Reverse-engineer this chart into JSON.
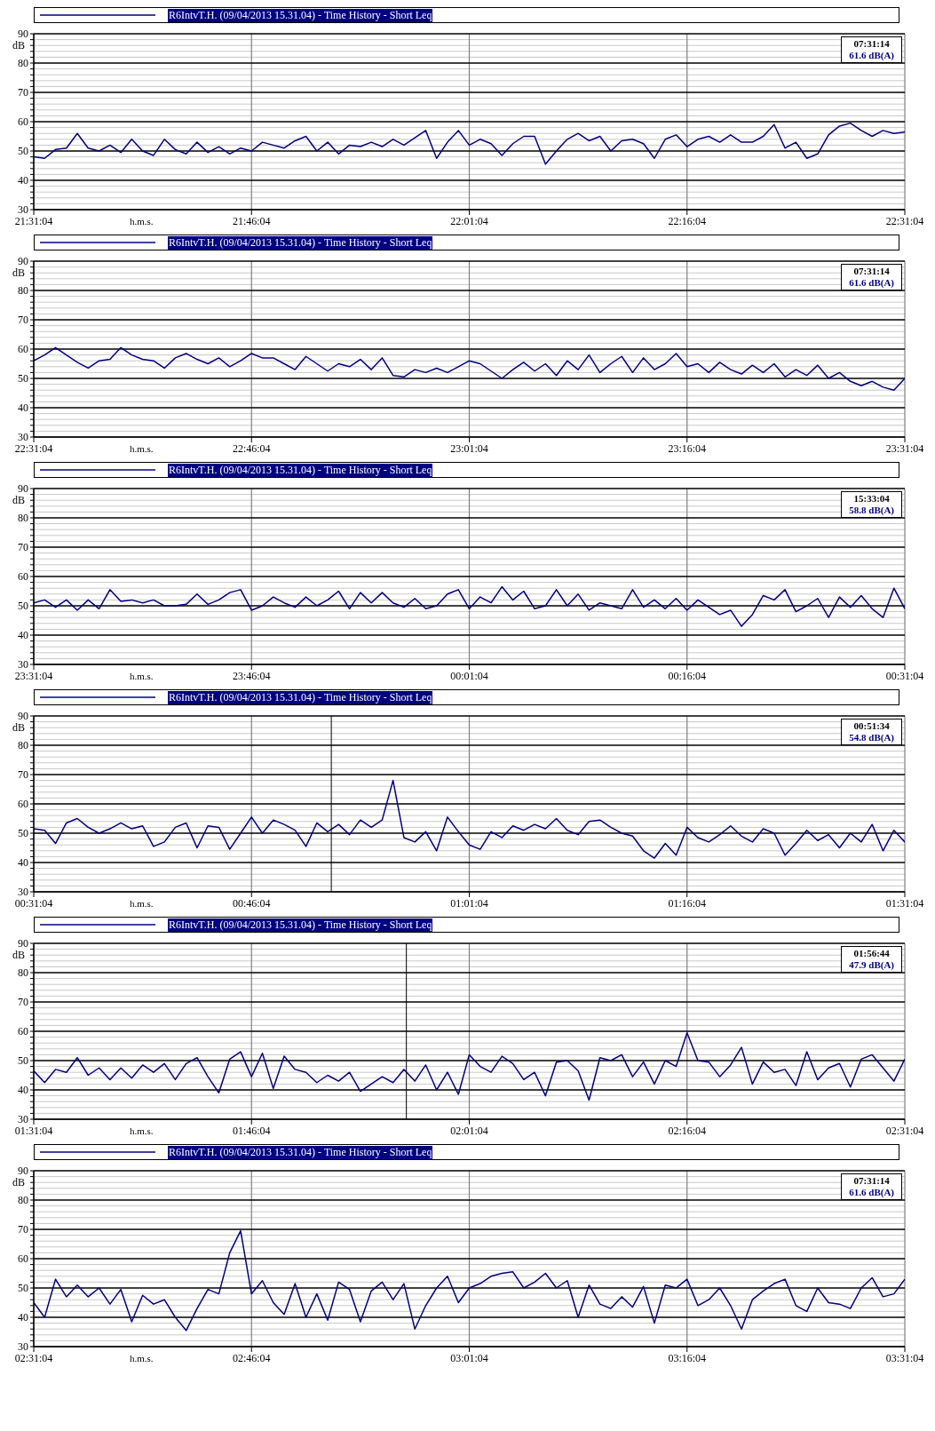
{
  "chart_data": [
    {
      "type": "line",
      "xlabel": "h.m.s.",
      "ylabel": "dB",
      "xlim": [
        21.5178,
        22.5178
      ],
      "xticks": [
        {
          "value": 21.5178,
          "label": "21:31:04"
        },
        {
          "value": 21.7678,
          "label": "21:46:04"
        },
        {
          "value": 22.0178,
          "label": "22:01:04"
        },
        {
          "value": 22.2678,
          "label": "22:16:04"
        },
        {
          "value": 22.5178,
          "label": "22:31:04"
        }
      ],
      "ylim": [
        30,
        90
      ],
      "yticks": [
        30,
        {
          "value": 32,
          "label": null
        },
        {
          "value": 34,
          "label": null
        },
        {
          "value": 36,
          "label": null
        },
        {
          "value": 38,
          "label": null
        },
        40,
        {
          "value": 42,
          "label": null
        },
        {
          "value": 44,
          "label": null
        },
        {
          "value": 46,
          "label": null
        },
        {
          "value": 48,
          "label": null
        },
        50,
        {
          "value": 52,
          "label": null
        },
        {
          "value": 54,
          "label": null
        },
        {
          "value": 56,
          "label": null
        },
        {
          "value": 58,
          "label": null
        },
        60,
        {
          "value": 62,
          "label": null
        },
        {
          "value": 64,
          "label": null
        },
        {
          "value": 66,
          "label": null
        },
        {
          "value": 68,
          "label": null
        },
        70,
        {
          "value": 72,
          "label": null
        },
        {
          "value": 74,
          "label": null
        },
        {
          "value": 76,
          "label": null
        },
        {
          "value": 78,
          "label": null
        },
        80,
        {
          "value": 82,
          "label": null
        },
        {
          "value": 84,
          "label": null
        },
        {
          "value": 86,
          "label": null
        },
        {
          "value": 88,
          "label": null
        },
        90
      ],
      "grid": true,
      "legend": "top",
      "annotations": [
        "07:31:14",
        "61.6 dB(A)"
      ],
      "series": [
        {
          "name": "R6IntvT.H. (09/04/2013 15.31.04) - Time History - Short Leq",
          "color": "#000080",
          "x": [
            21.5178,
            21.5303,
            21.5428,
            21.5553,
            21.5678,
            21.5803,
            21.5928,
            21.6053,
            21.6178,
            21.6303,
            21.6428,
            21.6553,
            21.6678,
            21.6803,
            21.6928,
            21.7053,
            21.7178,
            21.7303,
            21.7428,
            21.7553,
            21.7678,
            21.7803,
            21.7928,
            21.8053,
            21.8178,
            21.8303,
            21.8428,
            21.8553,
            21.8678,
            21.8803,
            21.8928,
            21.9053,
            21.9178,
            21.9303,
            21.9428,
            21.9553,
            21.9678,
            21.9803,
            21.9928,
            22.0053,
            22.0178,
            22.0303,
            22.0428,
            22.0553,
            22.0678,
            22.0803,
            22.0928,
            22.1053,
            22.1178,
            22.1303,
            22.1428,
            22.1553,
            22.1678,
            22.1803,
            22.1928,
            22.2053,
            22.2178,
            22.2303,
            22.2428,
            22.2553,
            22.2678,
            22.2803,
            22.2928,
            22.3053,
            22.3178,
            22.3303,
            22.3428,
            22.3553,
            22.3678,
            22.3803,
            22.3928,
            22.4053,
            22.4178,
            22.4303,
            22.4428,
            22.4553,
            22.4678,
            22.4803,
            22.4928,
            22.5053,
            22.5178
          ],
          "values": [
            48,
            47.5,
            50.5,
            51,
            56,
            51,
            50,
            52,
            49.5,
            54,
            50,
            48.5,
            54,
            50.5,
            49,
            53,
            49.5,
            51.5,
            49,
            51,
            50,
            53,
            52,
            51,
            53.5,
            55,
            50,
            53,
            49,
            52,
            51.5,
            53,
            51.5,
            54,
            52,
            54.5,
            57,
            47.5,
            53,
            57,
            52,
            54,
            52.5,
            48.5,
            52.5,
            55,
            55,
            45.5,
            50,
            54,
            56,
            53.5,
            55,
            50,
            53.5,
            54,
            52.5,
            47.5,
            54,
            55.5,
            51.5,
            54,
            55,
            53,
            55.5,
            53,
            53,
            55,
            59,
            51,
            53,
            47.5,
            49,
            55.5,
            58.5,
            59.5,
            57,
            55,
            57,
            56,
            56.5
          ]
        }
      ]
    },
    {
      "type": "line",
      "xlabel": "h.m.s.",
      "ylabel": "dB",
      "xlim": [
        22.5178,
        23.5178
      ],
      "xticks": [
        {
          "value": 22.5178,
          "label": "22:31:04"
        },
        {
          "value": 22.7678,
          "label": "22:46:04"
        },
        {
          "value": 23.0178,
          "label": "23:01:04"
        },
        {
          "value": 23.2678,
          "label": "23:16:04"
        },
        {
          "value": 23.5178,
          "label": "23:31:04"
        }
      ],
      "ylim": [
        30,
        90
      ],
      "yticks": [
        30,
        {
          "value": 32,
          "label": null
        },
        {
          "value": 34,
          "label": null
        },
        {
          "value": 36,
          "label": null
        },
        {
          "value": 38,
          "label": null
        },
        40,
        {
          "value": 42,
          "label": null
        },
        {
          "value": 44,
          "label": null
        },
        {
          "value": 46,
          "label": null
        },
        {
          "value": 48,
          "label": null
        },
        50,
        {
          "value": 52,
          "label": null
        },
        {
          "value": 54,
          "label": null
        },
        {
          "value": 56,
          "label": null
        },
        {
          "value": 58,
          "label": null
        },
        60,
        {
          "value": 62,
          "label": null
        },
        {
          "value": 64,
          "label": null
        },
        {
          "value": 66,
          "label": null
        },
        {
          "value": 68,
          "label": null
        },
        70,
        {
          "value": 72,
          "label": null
        },
        {
          "value": 74,
          "label": null
        },
        {
          "value": 76,
          "label": null
        },
        {
          "value": 78,
          "label": null
        },
        80,
        {
          "value": 82,
          "label": null
        },
        {
          "value": 84,
          "label": null
        },
        {
          "value": 86,
          "label": null
        },
        {
          "value": 88,
          "label": null
        },
        90
      ],
      "grid": true,
      "legend": "top",
      "annotations": [
        "07:31:14",
        "61.6 dB(A)"
      ],
      "series": [
        {
          "name": "R6IntvT.H. (09/04/2013 15.31.04) - Time History - Short Leq",
          "color": "#000080",
          "x": [
            22.5178,
            22.5303,
            22.5428,
            22.5553,
            22.5678,
            22.5803,
            22.5928,
            22.6053,
            22.6178,
            22.6303,
            22.6428,
            22.6553,
            22.6678,
            22.6803,
            22.6928,
            22.7053,
            22.7178,
            22.7303,
            22.7428,
            22.7553,
            22.7678,
            22.7803,
            22.7928,
            22.8053,
            22.8178,
            22.8303,
            22.8428,
            22.8553,
            22.8678,
            22.8803,
            22.8928,
            22.9053,
            22.9178,
            22.9303,
            22.9428,
            22.9553,
            22.9678,
            22.9803,
            22.9928,
            23.0053,
            23.0178,
            23.0303,
            23.0428,
            23.0553,
            23.0678,
            23.0803,
            23.0928,
            23.1053,
            23.1178,
            23.1303,
            23.1428,
            23.1553,
            23.1678,
            23.1803,
            23.1928,
            23.2053,
            23.2178,
            23.2303,
            23.2428,
            23.2553,
            23.2678,
            23.2803,
            23.2928,
            23.3053,
            23.3178,
            23.3303,
            23.3428,
            23.3553,
            23.3678,
            23.3803,
            23.3928,
            23.4053,
            23.4178,
            23.4303,
            23.4428,
            23.4553,
            23.4678,
            23.4803,
            23.4928,
            23.5053,
            23.5178
          ],
          "values": [
            56,
            58,
            60.5,
            58,
            55.5,
            53.5,
            56,
            56.5,
            60.5,
            58,
            56.5,
            56,
            53.5,
            57,
            58.5,
            56.5,
            55,
            57,
            54,
            56,
            58.5,
            57,
            57,
            55,
            53,
            57.5,
            55,
            52.5,
            55,
            54,
            56.5,
            53,
            57,
            51,
            50.5,
            53,
            52,
            53.5,
            52,
            54,
            56,
            55,
            52.5,
            50,
            53,
            55.5,
            52.5,
            55,
            51,
            56,
            53,
            58,
            52,
            55,
            57.5,
            52,
            57,
            53,
            55,
            58.5,
            54,
            55,
            52,
            55.5,
            53,
            51.5,
            54.5,
            52,
            55,
            50.5,
            53,
            51,
            54.5,
            50,
            52,
            49,
            47.5,
            49,
            47,
            46,
            50
          ]
        }
      ]
    },
    {
      "type": "line",
      "xlabel": "h.m.s.",
      "ylabel": "dB",
      "xlim": [
        "2013-04-09T23:31:04",
        "2013-04-10T00:31:04"
      ],
      "xticks": [
        {
          "value": "2013-04-09T23:31:04",
          "label": "23:31:04"
        },
        {
          "value": "2013-04-09T23:46:04",
          "label": "23:46:04"
        },
        {
          "value": "2013-04-10T00:01:04",
          "label": "00:01:04"
        },
        {
          "value": "2013-04-10T00:16:04",
          "label": "00:16:04"
        },
        {
          "value": "2013-04-10T00:31:04",
          "label": "00:31:04"
        }
      ],
      "ylim": [
        30,
        90
      ],
      "yticks": [
        30,
        {
          "value": 32,
          "label": null
        },
        {
          "value": 34,
          "label": null
        },
        {
          "value": 36,
          "label": null
        },
        {
          "value": 38,
          "label": null
        },
        40,
        {
          "value": 42,
          "label": null
        },
        {
          "value": 44,
          "label": null
        },
        {
          "value": 46,
          "label": null
        },
        {
          "value": 48,
          "label": null
        },
        50,
        {
          "value": 52,
          "label": null
        },
        {
          "value": 54,
          "label": null
        },
        {
          "value": 56,
          "label": null
        },
        {
          "value": 58,
          "label": null
        },
        60,
        {
          "value": 62,
          "label": null
        },
        {
          "value": 64,
          "label": null
        },
        {
          "value": 66,
          "label": null
        },
        {
          "value": 68,
          "label": null
        },
        70,
        {
          "value": 72,
          "label": null
        },
        {
          "value": 74,
          "label": null
        },
        {
          "value": 76,
          "label": null
        },
        {
          "value": 78,
          "label": null
        },
        80,
        {
          "value": 82,
          "label": null
        },
        {
          "value": 84,
          "label": null
        },
        {
          "value": 86,
          "label": null
        },
        {
          "value": 88,
          "label": null
        },
        90
      ],
      "grid": true,
      "legend": "top",
      "annotations": [
        "15:33:04",
        "58.8 dB(A)"
      ],
      "series": [
        {
          "name": "R6IntvT.H. (09/04/2013 15.31.04) - Time History - Short Leq",
          "color": "#000080",
          "x": [
            "2013-04-09T23:31:04",
            "2013-04-09T23:31:49",
            "2013-04-09T23:32:34",
            "2013-04-09T23:33:19",
            "2013-04-09T23:34:04",
            "2013-04-09T23:34:49",
            "2013-04-09T23:35:34",
            "2013-04-09T23:36:19",
            "2013-04-09T23:37:04",
            "2013-04-09T23:37:49",
            "2013-04-09T23:38:34",
            "2013-04-09T23:39:19",
            "2013-04-09T23:40:04",
            "2013-04-09T23:40:49",
            "2013-04-09T23:41:34",
            "2013-04-09T23:42:19",
            "2013-04-09T23:43:04",
            "2013-04-09T23:43:49",
            "2013-04-09T23:44:34",
            "2013-04-09T23:45:19",
            "2013-04-09T23:46:04",
            "2013-04-09T23:46:49",
            "2013-04-09T23:47:34",
            "2013-04-09T23:48:19",
            "2013-04-09T23:49:04",
            "2013-04-09T23:49:49",
            "2013-04-09T23:50:34",
            "2013-04-09T23:51:19",
            "2013-04-09T23:52:04",
            "2013-04-09T23:52:49",
            "2013-04-09T23:53:34",
            "2013-04-09T23:54:19",
            "2013-04-09T23:55:04",
            "2013-04-09T23:55:49",
            "2013-04-09T23:56:34",
            "2013-04-09T23:57:19",
            "2013-04-09T23:58:04",
            "2013-04-09T23:58:49",
            "2013-04-09T23:59:34",
            "2013-04-10T00:00:19",
            "2013-04-10T00:01:04",
            "2013-04-10T00:01:49",
            "2013-04-10T00:02:34",
            "2013-04-10T00:03:19",
            "2013-04-10T00:04:04",
            "2013-04-10T00:04:49",
            "2013-04-10T00:05:34",
            "2013-04-10T00:06:19",
            "2013-04-10T00:07:04",
            "2013-04-10T00:07:49",
            "2013-04-10T00:08:34",
            "2013-04-10T00:09:19",
            "2013-04-10T00:10:04",
            "2013-04-10T00:10:49",
            "2013-04-10T00:11:34",
            "2013-04-10T00:12:19",
            "2013-04-10T00:13:04",
            "2013-04-10T00:13:49",
            "2013-04-10T00:14:34",
            "2013-04-10T00:15:19",
            "2013-04-10T00:16:04",
            "2013-04-10T00:16:49",
            "2013-04-10T00:17:34",
            "2013-04-10T00:18:19",
            "2013-04-10T00:19:04",
            "2013-04-10T00:19:49",
            "2013-04-10T00:20:34",
            "2013-04-10T00:21:19",
            "2013-04-10T00:22:04",
            "2013-04-10T00:22:49",
            "2013-04-10T00:23:34",
            "2013-04-10T00:24:19",
            "2013-04-10T00:25:04",
            "2013-04-10T00:25:49",
            "2013-04-10T00:26:34",
            "2013-04-10T00:27:19",
            "2013-04-10T00:28:04",
            "2013-04-10T00:28:49",
            "2013-04-10T00:29:34",
            "2013-04-10T00:30:19",
            "2013-04-10T00:31:04"
          ],
          "values": [
            51,
            52,
            49.5,
            52,
            48.5,
            52,
            49,
            55.5,
            51.5,
            52,
            51,
            52,
            50,
            50,
            50.5,
            54,
            50.5,
            52,
            54.5,
            55.5,
            48.5,
            50,
            53,
            51,
            49.5,
            53,
            50,
            52,
            55,
            49,
            54.5,
            51,
            54.5,
            51,
            49.5,
            52.5,
            49,
            50,
            54,
            55.5,
            49,
            53,
            51,
            56.5,
            52,
            55,
            49,
            50,
            55.5,
            50,
            54,
            48.5,
            51,
            50,
            49,
            55.5,
            49.5,
            52,
            49,
            52.5,
            48.5,
            52,
            49.5,
            47,
            48.5,
            43,
            47,
            53.5,
            52,
            55.5,
            48,
            50,
            52.5,
            46,
            53,
            49.5,
            53.5,
            49,
            46,
            56,
            49
          ]
        }
      ]
    },
    {
      "type": "line",
      "xlabel": "h.m.s.",
      "ylabel": "dB",
      "xlim": [
        0.5178,
        1.5178
      ],
      "xticks": [
        {
          "value": 0.5178,
          "label": "00:31:04"
        },
        {
          "value": 0.7678,
          "label": "00:46:04"
        },
        {
          "value": 1.0178,
          "label": "01:01:04"
        },
        {
          "value": 1.2678,
          "label": "01:16:04"
        },
        {
          "value": 1.5178,
          "label": "01:31:04"
        }
      ],
      "ylim": [
        30,
        90
      ],
      "yticks": [
        30,
        {
          "value": 32,
          "label": null
        },
        {
          "value": 34,
          "label": null
        },
        {
          "value": 36,
          "label": null
        },
        {
          "value": 38,
          "label": null
        },
        40,
        {
          "value": 42,
          "label": null
        },
        {
          "value": 44,
          "label": null
        },
        {
          "value": 46,
          "label": null
        },
        {
          "value": 48,
          "label": null
        },
        50,
        {
          "value": 52,
          "label": null
        },
        {
          "value": 54,
          "label": null
        },
        {
          "value": 56,
          "label": null
        },
        {
          "value": 58,
          "label": null
        },
        60,
        {
          "value": 62,
          "label": null
        },
        {
          "value": 64,
          "label": null
        },
        {
          "value": 66,
          "label": null
        },
        {
          "value": 68,
          "label": null
        },
        70,
        {
          "value": 72,
          "label": null
        },
        {
          "value": 74,
          "label": null
        },
        {
          "value": 76,
          "label": null
        },
        {
          "value": 78,
          "label": null
        },
        80,
        {
          "value": 82,
          "label": null
        },
        {
          "value": 84,
          "label": null
        },
        {
          "value": 86,
          "label": null
        },
        {
          "value": 88,
          "label": null
        },
        90
      ],
      "grid": true,
      "legend": "top",
      "annotations": [
        "00:51:34",
        "54.8 dB(A)"
      ],
      "ref_lines": [
        {
          "axis": "x",
          "value": 0.8594,
          "color": "#000000"
        }
      ],
      "series": [
        {
          "name": "R6IntvT.H. (09/04/2013 15.31.04) - Time History - Short Leq",
          "color": "#000080",
          "x": [
            0.5178,
            0.5303,
            0.5428,
            0.5553,
            0.5678,
            0.5803,
            0.5928,
            0.6053,
            0.6178,
            0.6303,
            0.6428,
            0.6553,
            0.6678,
            0.6803,
            0.6928,
            0.7053,
            0.7178,
            0.7303,
            0.7428,
            0.7553,
            0.7678,
            0.7803,
            0.7928,
            0.8053,
            0.8178,
            0.8303,
            0.8428,
            0.8553,
            0.8678,
            0.8803,
            0.8928,
            0.9053,
            0.9178,
            0.9303,
            0.9428,
            0.9553,
            0.9678,
            0.9803,
            0.9928,
            1.0053,
            1.0178,
            1.0303,
            1.0428,
            1.0553,
            1.0678,
            1.0803,
            1.0928,
            1.1053,
            1.1178,
            1.1303,
            1.1428,
            1.1553,
            1.1678,
            1.1803,
            1.1928,
            1.2053,
            1.2178,
            1.2303,
            1.2428,
            1.2553,
            1.2678,
            1.2803,
            1.2928,
            1.3053,
            1.3178,
            1.3303,
            1.3428,
            1.3553,
            1.3678,
            1.3803,
            1.3928,
            1.4053,
            1.4178,
            1.4303,
            1.4428,
            1.4553,
            1.4678,
            1.4803,
            1.4928,
            1.5053,
            1.5178
          ],
          "values": [
            51.5,
            51,
            46.5,
            53.5,
            55,
            52,
            50,
            51.5,
            53.5,
            51.5,
            52.5,
            45.5,
            47,
            52,
            53.5,
            45,
            52.5,
            52,
            44.5,
            50,
            55.5,
            50,
            54.5,
            53,
            51,
            45.5,
            53.5,
            50.5,
            53,
            49.5,
            54.5,
            52,
            54.5,
            68,
            48.5,
            47,
            50.5,
            44,
            55.5,
            50.5,
            46,
            44.5,
            50.5,
            48.5,
            52.5,
            51,
            53,
            51.5,
            55,
            51,
            49.5,
            54,
            54.5,
            52,
            50,
            49,
            44,
            41.5,
            46.5,
            42.5,
            52,
            48.5,
            47,
            49.5,
            52.5,
            49,
            47,
            51.5,
            50,
            42.5,
            46.5,
            51,
            47.5,
            49.5,
            45,
            50,
            47,
            53,
            44,
            51,
            47
          ]
        }
      ]
    },
    {
      "type": "line",
      "xlabel": "h.m.s.",
      "ylabel": "dB",
      "xlim": [
        1.5178,
        2.5178
      ],
      "xticks": [
        {
          "value": 1.5178,
          "label": "01:31:04"
        },
        {
          "value": 1.7678,
          "label": "01:46:04"
        },
        {
          "value": 2.0178,
          "label": "02:01:04"
        },
        {
          "value": 2.2678,
          "label": "02:16:04"
        },
        {
          "value": 2.5178,
          "label": "02:31:04"
        }
      ],
      "ylim": [
        30,
        90
      ],
      "yticks": [
        30,
        {
          "value": 32,
          "label": null
        },
        {
          "value": 34,
          "label": null
        },
        {
          "value": 36,
          "label": null
        },
        {
          "value": 38,
          "label": null
        },
        40,
        {
          "value": 42,
          "label": null
        },
        {
          "value": 44,
          "label": null
        },
        {
          "value": 46,
          "label": null
        },
        {
          "value": 48,
          "label": null
        },
        50,
        {
          "value": 52,
          "label": null
        },
        {
          "value": 54,
          "label": null
        },
        {
          "value": 56,
          "label": null
        },
        {
          "value": 58,
          "label": null
        },
        60,
        {
          "value": 62,
          "label": null
        },
        {
          "value": 64,
          "label": null
        },
        {
          "value": 66,
          "label": null
        },
        {
          "value": 68,
          "label": null
        },
        70,
        {
          "value": 72,
          "label": null
        },
        {
          "value": 74,
          "label": null
        },
        {
          "value": 76,
          "label": null
        },
        {
          "value": 78,
          "label": null
        },
        80,
        {
          "value": 82,
          "label": null
        },
        {
          "value": 84,
          "label": null
        },
        {
          "value": 86,
          "label": null
        },
        {
          "value": 88,
          "label": null
        },
        90
      ],
      "grid": true,
      "legend": "top",
      "annotations": [
        "01:56:44",
        "47.9 dB(A)"
      ],
      "ref_lines": [
        {
          "axis": "x",
          "value": 1.9456,
          "color": "#000000"
        }
      ],
      "series": [
        {
          "name": "R6IntvT.H. (09/04/2013 15.31.04) - Time History - Short Leq",
          "color": "#000080",
          "x": [
            1.5178,
            1.5303,
            1.5428,
            1.5553,
            1.5678,
            1.5803,
            1.5928,
            1.6053,
            1.6178,
            1.6303,
            1.6428,
            1.6553,
            1.6678,
            1.6803,
            1.6928,
            1.7053,
            1.7178,
            1.7303,
            1.7428,
            1.7553,
            1.7678,
            1.7803,
            1.7928,
            1.8053,
            1.8178,
            1.8303,
            1.8428,
            1.8553,
            1.8678,
            1.8803,
            1.8928,
            1.9053,
            1.9178,
            1.9303,
            1.9428,
            1.9553,
            1.9678,
            1.9803,
            1.9928,
            2.0053,
            2.0178,
            2.0303,
            2.0428,
            2.0553,
            2.0678,
            2.0803,
            2.0928,
            2.1053,
            2.1178,
            2.1303,
            2.1428,
            2.1553,
            2.1678,
            2.1803,
            2.1928,
            2.2053,
            2.2178,
            2.2303,
            2.2428,
            2.2553,
            2.2678,
            2.2803,
            2.2928,
            2.3053,
            2.3178,
            2.3303,
            2.3428,
            2.3553,
            2.3678,
            2.3803,
            2.3928,
            2.4053,
            2.4178,
            2.4303,
            2.4428,
            2.4553,
            2.4678,
            2.4803,
            2.4928,
            2.5053,
            2.5178
          ],
          "values": [
            46.5,
            42.5,
            47,
            46,
            51,
            45,
            47.5,
            43.5,
            47.5,
            44,
            48.5,
            46,
            49,
            43.5,
            49,
            51,
            44.5,
            39,
            50.5,
            53,
            44.5,
            52.5,
            40.5,
            51.5,
            47,
            46,
            42.5,
            45,
            43,
            46,
            39.5,
            42,
            44.5,
            42.5,
            47,
            43,
            48.5,
            40,
            46,
            38.5,
            52,
            48,
            46,
            51.5,
            49,
            43.5,
            46,
            38,
            49.5,
            50,
            46.5,
            36.5,
            51,
            50,
            52,
            44.5,
            49.5,
            42,
            50,
            48,
            59.5,
            50,
            49.5,
            44.5,
            48.5,
            54.5,
            42,
            49.5,
            46,
            47,
            41.5,
            53,
            43.5,
            47.5,
            49,
            41,
            50.5,
            52,
            47.5,
            43,
            50.5
          ]
        }
      ]
    },
    {
      "type": "line",
      "xlabel": "h.m.s.",
      "ylabel": "dB",
      "xlim": [
        2.5178,
        3.5178
      ],
      "xticks": [
        {
          "value": 2.5178,
          "label": "02:31:04"
        },
        {
          "value": 2.7678,
          "label": "02:46:04"
        },
        {
          "value": 3.0178,
          "label": "03:01:04"
        },
        {
          "value": 3.2678,
          "label": "03:16:04"
        },
        {
          "value": 3.5178,
          "label": "03:31:04"
        }
      ],
      "ylim": [
        30,
        90
      ],
      "yticks": [
        30,
        {
          "value": 32,
          "label": null
        },
        {
          "value": 34,
          "label": null
        },
        {
          "value": 36,
          "label": null
        },
        {
          "value": 38,
          "label": null
        },
        40,
        {
          "value": 42,
          "label": null
        },
        {
          "value": 44,
          "label": null
        },
        {
          "value": 46,
          "label": null
        },
        {
          "value": 48,
          "label": null
        },
        50,
        {
          "value": 52,
          "label": null
        },
        {
          "value": 54,
          "label": null
        },
        {
          "value": 56,
          "label": null
        },
        {
          "value": 58,
          "label": null
        },
        60,
        {
          "value": 62,
          "label": null
        },
        {
          "value": 64,
          "label": null
        },
        {
          "value": 66,
          "label": null
        },
        {
          "value": 68,
          "label": null
        },
        70,
        {
          "value": 72,
          "label": null
        },
        {
          "value": 74,
          "label": null
        },
        {
          "value": 76,
          "label": null
        },
        {
          "value": 78,
          "label": null
        },
        80,
        {
          "value": 82,
          "label": null
        },
        {
          "value": 84,
          "label": null
        },
        {
          "value": 86,
          "label": null
        },
        {
          "value": 88,
          "label": null
        },
        90
      ],
      "grid": true,
      "legend": "top",
      "annotations": [
        "07:31:14",
        "61.6 dB(A)"
      ],
      "series": [
        {
          "name": "R6IntvT.H. (09/04/2013 15.31.04) - Time History - Short Leq",
          "color": "#000080",
          "x": [
            2.5178,
            2.5303,
            2.5428,
            2.5553,
            2.5678,
            2.5803,
            2.5928,
            2.6053,
            2.6178,
            2.6303,
            2.6428,
            2.6553,
            2.6678,
            2.6803,
            2.6928,
            2.7053,
            2.7178,
            2.7303,
            2.7428,
            2.7553,
            2.7678,
            2.7803,
            2.7928,
            2.8053,
            2.8178,
            2.8303,
            2.8428,
            2.8553,
            2.8678,
            2.8803,
            2.8928,
            2.9053,
            2.9178,
            2.9303,
            2.9428,
            2.9553,
            2.9678,
            2.9803,
            2.9928,
            3.0053,
            3.0178,
            3.0303,
            3.0428,
            3.0553,
            3.0678,
            3.0803,
            3.0928,
            3.1053,
            3.1178,
            3.1303,
            3.1428,
            3.1553,
            3.1678,
            3.1803,
            3.1928,
            3.2053,
            3.2178,
            3.2303,
            3.2428,
            3.2553,
            3.2678,
            3.2803,
            3.2928,
            3.3053,
            3.3178,
            3.3303,
            3.3428,
            3.3553,
            3.3678,
            3.3803,
            3.3928,
            3.4053,
            3.4178,
            3.4303,
            3.4428,
            3.4553,
            3.4678,
            3.4803,
            3.4928,
            3.5053,
            3.5178
          ],
          "values": [
            45,
            40,
            53,
            47,
            51,
            47,
            50,
            44.5,
            49.5,
            38.5,
            47.5,
            44.5,
            46,
            40,
            35.5,
            43,
            49.5,
            48,
            62,
            69.5,
            48,
            52.5,
            45,
            41,
            51.5,
            40,
            48,
            39,
            52,
            49.5,
            38.5,
            49,
            52,
            46,
            51.5,
            36,
            44,
            50,
            54,
            45,
            50,
            51.5,
            54,
            55,
            55.5,
            50,
            52,
            55,
            50,
            52.5,
            40,
            51,
            44.5,
            43,
            47,
            43.5,
            50.5,
            38,
            51,
            50,
            53,
            44,
            46,
            50,
            44,
            36,
            46,
            49,
            51.5,
            53,
            44,
            42,
            50,
            45,
            44.5,
            43,
            50,
            53.5,
            47,
            48,
            53
          ]
        }
      ]
    }
  ]
}
